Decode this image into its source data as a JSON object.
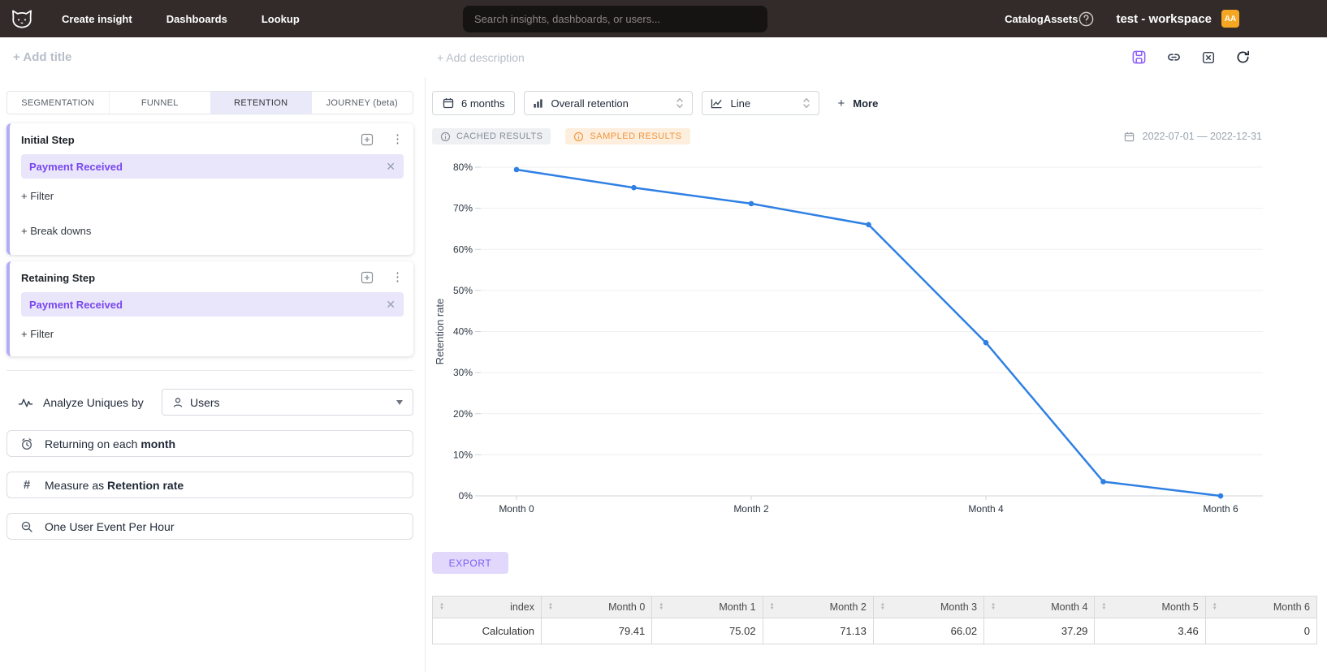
{
  "nav": {
    "items": [
      {
        "label": "Create insight"
      },
      {
        "label": "Dashboards"
      },
      {
        "label": "Lookup"
      }
    ],
    "search_placeholder": "Search insights, dashboards, or users...",
    "right_items": [
      {
        "label": "Catalog"
      },
      {
        "label": "Assets"
      }
    ],
    "workspace": "test - workspace",
    "avatar": "AA"
  },
  "header": {
    "add_title": "+ Add title",
    "add_description": "+ Add description"
  },
  "builder": {
    "tabs": [
      {
        "label": "SEGMENTATION"
      },
      {
        "label": "FUNNEL"
      },
      {
        "label": "RETENTION"
      },
      {
        "label": "JOURNEY (beta)"
      }
    ],
    "initial_step": {
      "title": "Initial Step",
      "event": "Payment Received",
      "filter_label": "+ Filter",
      "breakdown_label": "+ Break downs"
    },
    "retaining_step": {
      "title": "Retaining Step",
      "event": "Payment Received",
      "filter_label": "+ Filter"
    },
    "analyze": {
      "label": "Analyze Uniques by",
      "value": "Users"
    },
    "options": [
      {
        "prefix": "Returning on each ",
        "bold": "month"
      },
      {
        "prefix": "Measure as ",
        "bold": "Retention rate"
      },
      {
        "prefix": "One User Event Per Hour",
        "bold": ""
      }
    ]
  },
  "controls": {
    "date_range_button": "6 months",
    "retention_type": "Overall retention",
    "chart_type": "Line",
    "plus": "+",
    "more_label": "More"
  },
  "status": {
    "cached": "CACHED RESULTS",
    "sampled": "SAMPLED RESULTS",
    "date_range": "2022-07-01 — 2022-12-31"
  },
  "chart_data": {
    "type": "line",
    "categories": [
      "Month 0",
      "Month 1",
      "Month 2",
      "Month 3",
      "Month 4",
      "Month 5",
      "Month 6"
    ],
    "values": [
      79.41,
      75.02,
      71.13,
      66.02,
      37.29,
      3.46,
      0
    ],
    "series_name": "Calculation",
    "title": "",
    "xlabel": "",
    "ylabel": "Retention rate",
    "ylim": [
      0,
      80
    ],
    "ytick_step": 10,
    "ytick_suffix": "%",
    "x_label_every": 2,
    "line_color": "#2f80e4",
    "grid": true,
    "legend": false
  },
  "export_label": "EXPORT",
  "table": {
    "columns": [
      "index",
      "Month 0",
      "Month 1",
      "Month 2",
      "Month 3",
      "Month 4",
      "Month 5",
      "Month 6"
    ],
    "rows": [
      [
        "Calculation",
        "79.41",
        "75.02",
        "71.13",
        "66.02",
        "37.29",
        "3.46",
        "0"
      ]
    ]
  }
}
